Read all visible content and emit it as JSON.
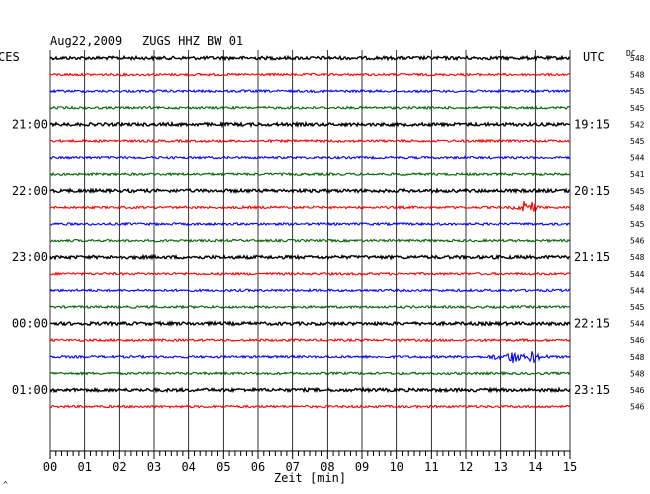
{
  "header": {
    "date": "Aug22,2009",
    "station": "ZUGS HHZ BW 01",
    "left_tz": "CES",
    "right_tz": "UTC",
    "dc_label": "DC"
  },
  "left_time_labels": [
    "21:00",
    "22:00",
    "23:00",
    "00:00",
    "01:00"
  ],
  "right_time_labels": [
    "19:15",
    "20:15",
    "21:15",
    "22:15",
    "23:15"
  ],
  "dc_values": [
    "548",
    "548",
    "545",
    "545",
    "542",
    "545",
    "544",
    "541",
    "545",
    "548",
    "545",
    "546",
    "548",
    "544",
    "544",
    "545",
    "544",
    "546",
    "548",
    "548",
    "546",
    "546"
  ],
  "x_tick_labels": [
    "00",
    "01",
    "02",
    "03",
    "04",
    "05",
    "06",
    "07",
    "08",
    "09",
    "10",
    "11",
    "12",
    "13",
    "14",
    "15"
  ],
  "x_axis_label": "Zeit [min]",
  "corner_mark": "^",
  "colors": {
    "black": "#000000",
    "red": "#ff0000",
    "blue": "#0000ff",
    "green": "#006400",
    "grid": "#000000"
  },
  "chart_data": {
    "type": "line",
    "title": "Aug22,2009 ZUGS HHZ BW 01",
    "xlabel": "Zeit [min]",
    "xlim": [
      0,
      15
    ],
    "trace_count": 22,
    "trace_color_cycle": [
      "black",
      "red",
      "blue",
      "green"
    ],
    "events": [
      {
        "trace": 9,
        "color": "red",
        "start_min": 13.3,
        "end_min": 14.2
      },
      {
        "trace": 18,
        "color": "blue",
        "start_min": 12.6,
        "end_min": 14.5
      }
    ]
  }
}
